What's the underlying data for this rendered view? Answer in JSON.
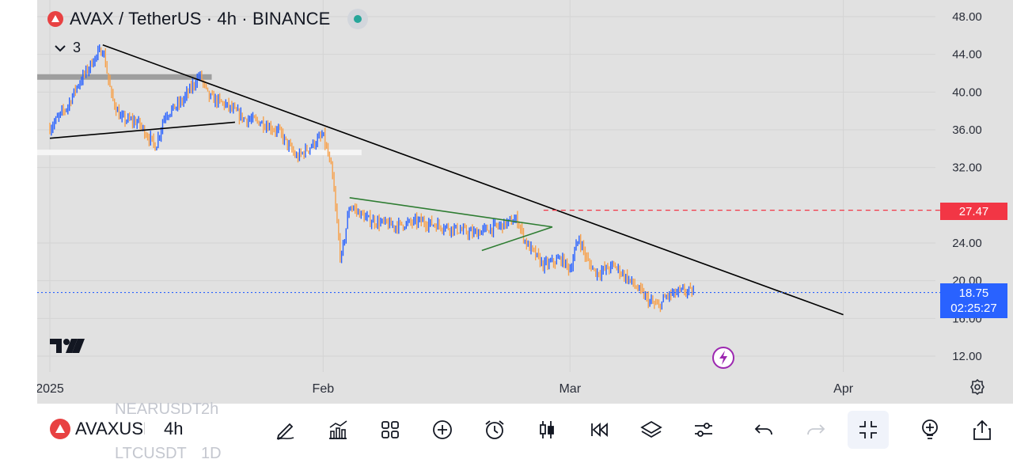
{
  "chart_header": {
    "title": "AVAX / TetherUS · 4h · BINANCE",
    "indicators_count": "3"
  },
  "chart_data": {
    "type": "candlestick",
    "symbol": "AVAX / TetherUS",
    "interval": "4h",
    "exchange": "BINANCE",
    "y_ticks": [
      "48.00",
      "44.00",
      "40.00",
      "36.00",
      "32.00",
      "24.00",
      "20.00",
      "16.00",
      "12.00"
    ],
    "x_ticks": [
      "2025",
      "Feb",
      "Mar",
      "Apr"
    ],
    "ylim": [
      12,
      48
    ],
    "price_path": [
      [
        "2025-01-01",
        36.2
      ],
      [
        "2025-01-03",
        38.5
      ],
      [
        "2025-01-04",
        40.5
      ],
      [
        "2025-01-06",
        43.5
      ],
      [
        "2025-01-07",
        44.6
      ],
      [
        "2025-01-08",
        39.5
      ],
      [
        "2025-01-09",
        37.2
      ],
      [
        "2025-01-11",
        36.8
      ],
      [
        "2025-01-13",
        34.2
      ],
      [
        "2025-01-14",
        37.5
      ],
      [
        "2025-01-16",
        39.0
      ],
      [
        "2025-01-18",
        41.8
      ],
      [
        "2025-01-19",
        39.5
      ],
      [
        "2025-01-21",
        38.6
      ],
      [
        "2025-01-23",
        37.2
      ],
      [
        "2025-01-25",
        36.8
      ],
      [
        "2025-01-27",
        35.8
      ],
      [
        "2025-01-29",
        33.0
      ],
      [
        "2025-01-31",
        34.6
      ],
      [
        "2025-02-01",
        35.4
      ],
      [
        "2025-02-02",
        31.5
      ],
      [
        "2025-02-03",
        22.0
      ],
      [
        "2025-02-04",
        28.0
      ],
      [
        "2025-02-06",
        26.5
      ],
      [
        "2025-02-09",
        25.8
      ],
      [
        "2025-02-12",
        26.3
      ],
      [
        "2025-02-15",
        25.7
      ],
      [
        "2025-02-18",
        25.0
      ],
      [
        "2025-02-21",
        25.8
      ],
      [
        "2025-02-23",
        26.5
      ],
      [
        "2025-02-24",
        24.0
      ],
      [
        "2025-02-26",
        21.6
      ],
      [
        "2025-02-28",
        22.3
      ],
      [
        "2025-03-01",
        21.2
      ],
      [
        "2025-03-02",
        24.6
      ],
      [
        "2025-03-03",
        22.0
      ],
      [
        "2025-03-04",
        20.8
      ],
      [
        "2025-03-06",
        21.6
      ],
      [
        "2025-03-08",
        19.8
      ],
      [
        "2025-03-10",
        17.8
      ],
      [
        "2025-03-11",
        17.2
      ],
      [
        "2025-03-12",
        18.4
      ],
      [
        "2025-03-14",
        18.9
      ],
      [
        "2025-03-15",
        18.75
      ]
    ],
    "last_price": "18.75",
    "countdown": "02:25:27",
    "alert_price": "27.47",
    "drawings": [
      {
        "kind": "trendline",
        "color": "#000000",
        "from": [
          "2025-01-07",
          45.0
        ],
        "to": [
          "2025-04-01",
          16.4
        ]
      },
      {
        "kind": "trendline",
        "color": "#000000",
        "from": [
          "2025-01-01",
          35.1
        ],
        "to": [
          "2025-01-22",
          36.8
        ]
      },
      {
        "kind": "trendline",
        "color": "#2e7d32",
        "from": [
          "2025-02-04",
          28.8
        ],
        "to": [
          "2025-02-27",
          25.7
        ]
      },
      {
        "kind": "trendline",
        "color": "#2e7d32",
        "from": [
          "2025-02-19",
          23.2
        ],
        "to": [
          "2025-02-27",
          25.7
        ]
      },
      {
        "kind": "zone",
        "color": "#9e9e9e",
        "price": 41.6,
        "from": "2025-01-01",
        "to": "2025-01-19"
      },
      {
        "kind": "zone",
        "color": "#f5f5f5",
        "price": 33.6,
        "from": "2025-01-01",
        "to": "2025-02-05"
      },
      {
        "kind": "hline",
        "color": "#f23645",
        "style": "dashed",
        "price": 27.47,
        "from": "2025-02-26"
      },
      {
        "kind": "hline",
        "color": "#2962ff",
        "style": "dotted",
        "price": 18.75
      }
    ],
    "up_color": "#2962ff",
    "down_color": "#f7a14b"
  },
  "toolbar": {
    "symbol": "AVAXUSDT",
    "interval": "4h",
    "ghost_above_symbol": "NEARUSDT",
    "ghost_above_interval": "2h",
    "ghost_below_symbol": "LTCUSDT",
    "ghost_below_interval": "1D",
    "icons": [
      "pencil-icon",
      "indicators-icon",
      "grid-icon",
      "plus-circle-icon",
      "alarm-icon",
      "candles-icon",
      "replay-icon",
      "layers-icon",
      "settings-sliders-icon",
      "undo-icon",
      "redo-icon",
      "exit-fullscreen-icon",
      "ideas-icon",
      "share-icon"
    ]
  }
}
